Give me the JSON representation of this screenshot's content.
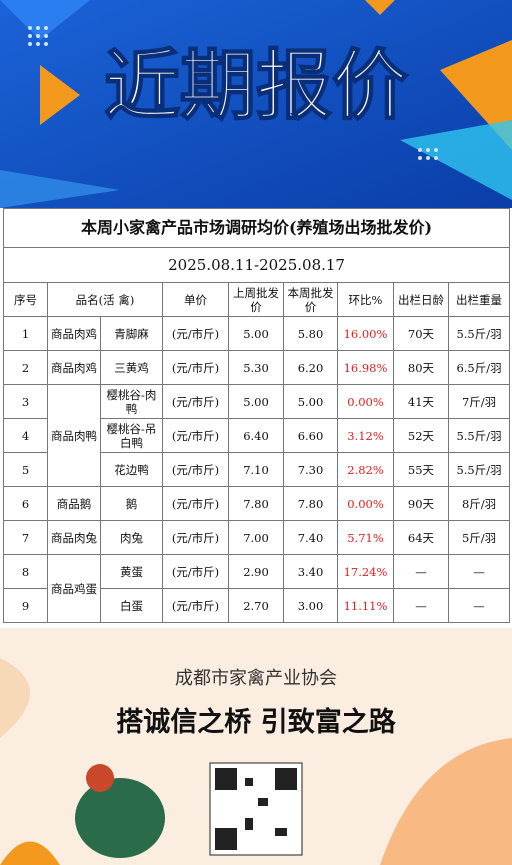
{
  "banner": {
    "title": "近期报价"
  },
  "table": {
    "title": "本周小家禽产品市场调研均价(养殖场出场批发价)",
    "date_range": "2025.08.11-2025.08.17",
    "headers": [
      "序号",
      "品名(活 禽)",
      "单价",
      "上周批发价",
      "本周批发价",
      "环比%",
      "出栏日龄",
      "出栏重量"
    ],
    "groups": [
      {
        "category": "商品肉鸡",
        "rows": [
          [
            "1",
            "青脚麻",
            "(元/市斤)",
            "5.00",
            "5.80",
            "16.00%",
            "70天",
            "5.5斤/羽"
          ]
        ]
      },
      {
        "category": "商品肉鸡",
        "rows": [
          [
            "2",
            "三黄鸡",
            "(元/市斤)",
            "5.30",
            "6.20",
            "16.98%",
            "80天",
            "6.5斤/羽"
          ]
        ]
      },
      {
        "category": "商品肉鸭",
        "rows": [
          [
            "3",
            "樱桃谷-肉 鸭",
            "(元/市斤)",
            "5.00",
            "5.00",
            "0.00%",
            "41天",
            "7斤/羽"
          ],
          [
            "4",
            "樱桃谷-吊白鸭",
            "(元/市斤)",
            "6.40",
            "6.60",
            "3.12%",
            "52天",
            "5.5斤/羽"
          ],
          [
            "5",
            "花边鸭",
            "(元/市斤)",
            "7.10",
            "7.30",
            "2.82%",
            "55天",
            "5.5斤/羽"
          ]
        ]
      },
      {
        "category": "商品鹅",
        "rows": [
          [
            "6",
            "鹅",
            "(元/市斤)",
            "7.80",
            "7.80",
            "0.00%",
            "90天",
            "8斤/羽"
          ]
        ]
      },
      {
        "category": "商品肉兔",
        "rows": [
          [
            "7",
            "肉兔",
            "(元/市斤)",
            "7.00",
            "7.40",
            "5.71%",
            "64天",
            "5斤/羽"
          ]
        ]
      },
      {
        "category": "商品鸡蛋",
        "rows": [
          [
            "8",
            "黄蛋",
            "(元/市斤)",
            "2.90",
            "3.40",
            "17.24%",
            "—",
            "—"
          ],
          [
            "9",
            "白蛋",
            "(元/市斤)",
            "2.70",
            "3.00",
            "11.11%",
            "—",
            "—"
          ]
        ]
      }
    ]
  },
  "footer": {
    "org": "成都市家禽产业协会",
    "slogan": "搭诚信之桥 引致富之路"
  }
}
